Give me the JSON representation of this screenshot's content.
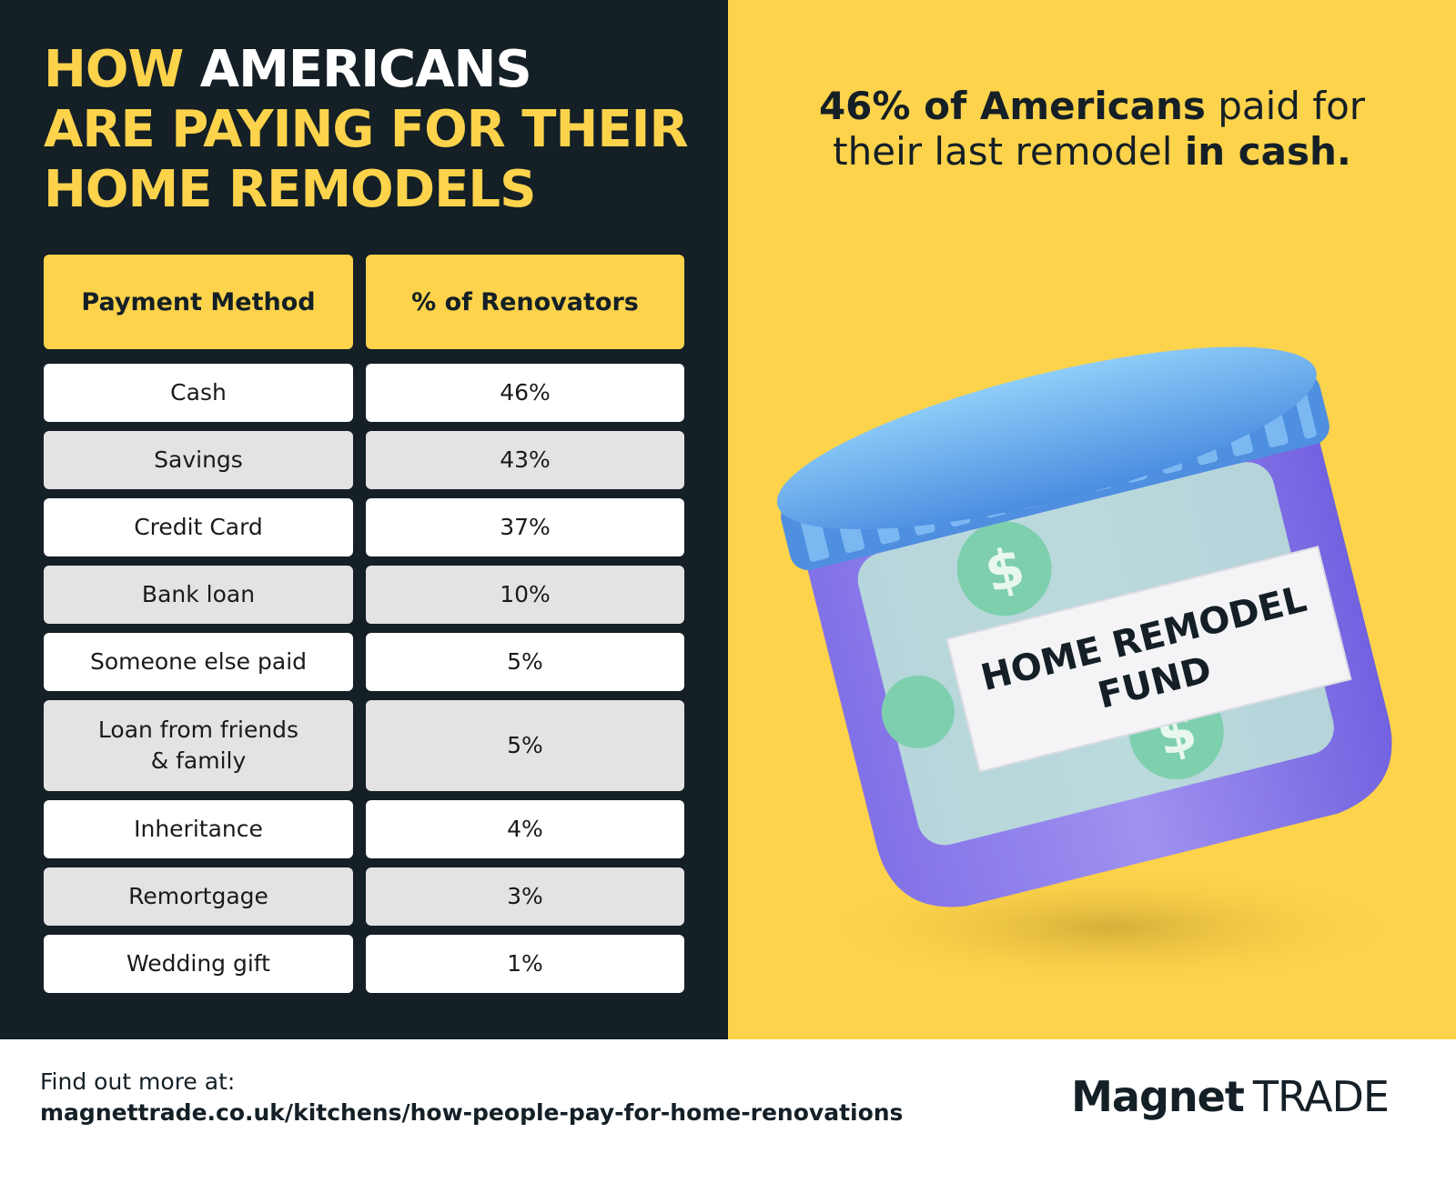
{
  "title": {
    "word_how": "HOW",
    "word_americans": "AMERICANS",
    "line2": "ARE PAYING FOR THEIR",
    "line3": "HOME REMODELS"
  },
  "table": {
    "headers": [
      "Payment Method",
      "% of Renovators"
    ],
    "rows": [
      {
        "method": "Cash",
        "percent": "46%"
      },
      {
        "method": "Savings",
        "percent": "43%"
      },
      {
        "method": "Credit Card",
        "percent": "37%"
      },
      {
        "method": "Bank loan",
        "percent": "10%"
      },
      {
        "method": "Someone else paid",
        "percent": "5%"
      },
      {
        "method_line1": "Loan from friends",
        "method_line2": "& family",
        "percent": "5%"
      },
      {
        "method": "Inheritance",
        "percent": "4%"
      },
      {
        "method": "Remortgage",
        "percent": "3%"
      },
      {
        "method": "Wedding gift",
        "percent": "1%"
      }
    ]
  },
  "headline": {
    "bold1": "46% of Americans",
    "normal1": "paid for",
    "normal2": "their last remodel",
    "bold2": "in cash."
  },
  "jar": {
    "label_line1": "HOME REMODEL",
    "label_line2": "FUND"
  },
  "footer": {
    "lead": "Find out more at:",
    "url": "magnettrade.co.uk/kitchens/how-people-pay-for-home-renovations"
  },
  "brand": {
    "strong": "Magnet",
    "light": "TRADE"
  },
  "colors": {
    "dark": "#141f26",
    "yellow": "#fcd34b",
    "row_alt": "#e4e2e2",
    "jar_lid": "#6ab0f0",
    "jar_body": "#8a7cf0"
  }
}
